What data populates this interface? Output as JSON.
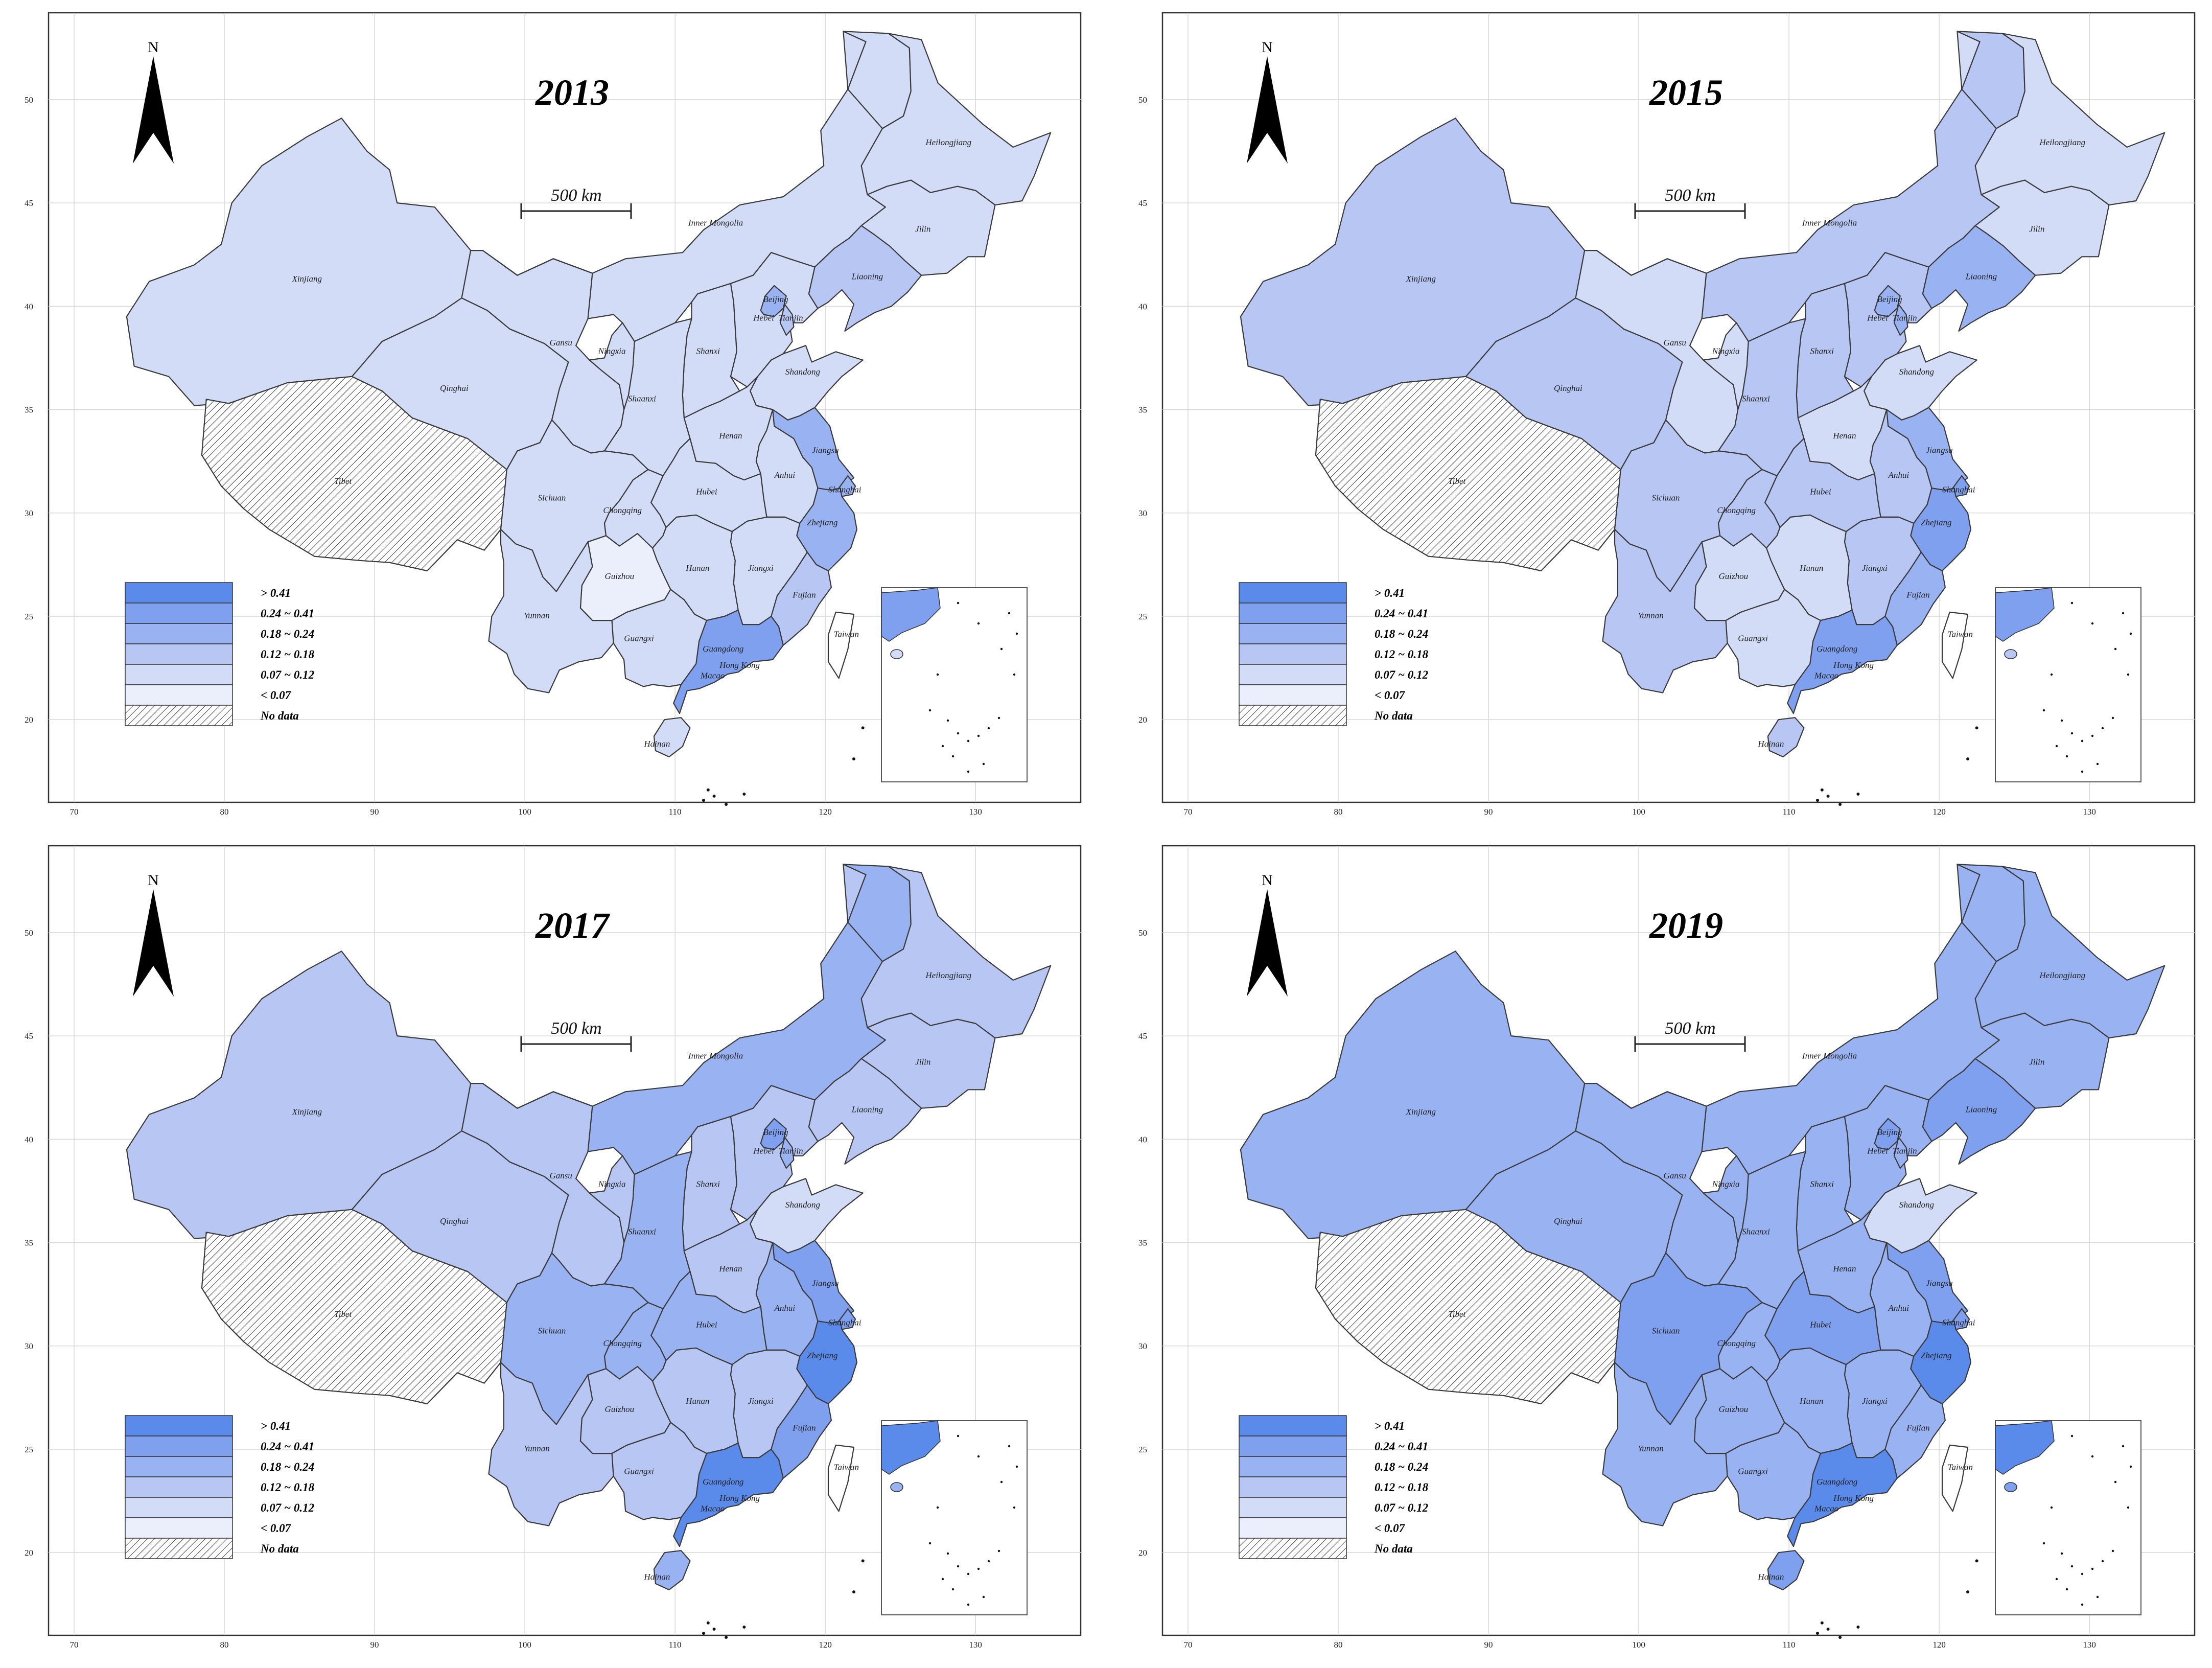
{
  "colors": {
    "class_gt_0_41": "#5b8bea",
    "class_0_24_0_41": "#7f9fef",
    "class_0_18_0_24": "#99b2f1",
    "class_0_12_0_18": "#b7c6f3",
    "class_0_07_0_12": "#d2dcf7",
    "class_lt_0_07": "#ebeffc",
    "no_data": "hatched",
    "grid": "#d8d8d8",
    "border": "#3a3a3a"
  },
  "axes": {
    "x_ticks": [
      "70",
      "80",
      "90",
      "100",
      "110",
      "120",
      "130"
    ],
    "y_ticks": [
      "20",
      "25",
      "30",
      "35",
      "40",
      "45",
      "50"
    ]
  },
  "north_arrow": {
    "label": "N",
    "icon": "north-arrow-icon"
  },
  "scale_bar": {
    "label": "500 km"
  },
  "legend": [
    {
      "key": "c5",
      "label": "> 0.41"
    },
    {
      "key": "c4",
      "label": "0.24 ~ 0.41"
    },
    {
      "key": "c3",
      "label": "0.18 ~ 0.24"
    },
    {
      "key": "c2",
      "label": "0.12 ~ 0.18"
    },
    {
      "key": "c1",
      "label": "0.07 ~ 0.12"
    },
    {
      "key": "c0",
      "label": "< 0.07"
    },
    {
      "key": "nd",
      "label": "No data"
    }
  ],
  "province_labels": {
    "Xinjiang": "Xinjiang",
    "Tibet": "Tibet",
    "Qinghai": "Qinghai",
    "Gansu": "Gansu",
    "InnerMongolia": "Inner Mongolia",
    "Heilongjiang": "Heilongjiang",
    "Jilin": "Jilin",
    "Liaoning": "Liaoning",
    "Beijing": "Beijing",
    "Tianjin": "Tianjin",
    "Hebei": "Hebei",
    "Shanxi": "Shanxi",
    "Shandong": "Shandong",
    "Ningxia": "Ningxia",
    "Shaanxi": "Shaanxi",
    "Henan": "Henan",
    "Jiangsu": "Jiangsu",
    "Anhui": "Anhui",
    "Shanghai": "Shanghai",
    "Hubei": "Hubei",
    "Sichuan": "Sichuan",
    "Chongqing": "Chongqing",
    "Zhejiang": "Zhejiang",
    "Hunan": "Hunan",
    "Jiangxi": "Jiangxi",
    "Guizhou": "Guizhou",
    "Fujian": "Fujian",
    "Yunnan": "Yunnan",
    "Guangxi": "Guangxi",
    "Guangdong": "Guangdong",
    "Taiwan": "Taiwan",
    "HongKong": "Hong Kong",
    "Macao": "Macao",
    "Hainan": "Hainan"
  },
  "panels": [
    {
      "year": "2013",
      "classes": {
        "Xinjiang": "c1",
        "Tibet": "nd",
        "Qinghai": "c1",
        "Gansu": "c1",
        "InnerMongolia": "c1",
        "Heilongjiang": "c1",
        "Jilin": "c1",
        "Liaoning": "c2",
        "Beijing": "c3",
        "Tianjin": "c2",
        "Hebei": "c1",
        "Shanxi": "c1",
        "Shandong": "c1",
        "Ningxia": "c1",
        "Shaanxi": "c1",
        "Henan": "c1",
        "Jiangsu": "c3",
        "Anhui": "c1",
        "Shanghai": "c3",
        "Hubei": "c1",
        "Sichuan": "c1",
        "Chongqing": "c1",
        "Zhejiang": "c3",
        "Hunan": "c1",
        "Jiangxi": "c1",
        "Guizhou": "c0",
        "Fujian": "c2",
        "Yunnan": "c1",
        "Guangxi": "c1",
        "Guangdong": "c4",
        "Hainan": "c1"
      }
    },
    {
      "year": "2015",
      "classes": {
        "Xinjiang": "c2",
        "Tibet": "nd",
        "Qinghai": "c2",
        "Gansu": "c1",
        "InnerMongolia": "c2",
        "Heilongjiang": "c1",
        "Jilin": "c1",
        "Liaoning": "c3",
        "Beijing": "c3",
        "Tianjin": "c3",
        "Hebei": "c2",
        "Shanxi": "c2",
        "Shandong": "c1",
        "Ningxia": "c1",
        "Shaanxi": "c2",
        "Henan": "c1",
        "Jiangsu": "c3",
        "Anhui": "c2",
        "Shanghai": "c4",
        "Hubei": "c2",
        "Sichuan": "c2",
        "Chongqing": "c2",
        "Zhejiang": "c4",
        "Hunan": "c1",
        "Jiangxi": "c2",
        "Guizhou": "c1",
        "Fujian": "c3",
        "Yunnan": "c2",
        "Guangxi": "c1",
        "Guangdong": "c4",
        "Hainan": "c2"
      }
    },
    {
      "year": "2017",
      "classes": {
        "Xinjiang": "c2",
        "Tibet": "nd",
        "Qinghai": "c2",
        "Gansu": "c2",
        "InnerMongolia": "c3",
        "Heilongjiang": "c2",
        "Jilin": "c2",
        "Liaoning": "c2",
        "Beijing": "c4",
        "Tianjin": "c3",
        "Hebei": "c2",
        "Shanxi": "c2",
        "Shandong": "c1",
        "Ningxia": "c2",
        "Shaanxi": "c3",
        "Henan": "c2",
        "Jiangsu": "c4",
        "Anhui": "c3",
        "Shanghai": "c4",
        "Hubei": "c3",
        "Sichuan": "c3",
        "Chongqing": "c3",
        "Zhejiang": "c5",
        "Hunan": "c2",
        "Jiangxi": "c2",
        "Guizhou": "c2",
        "Fujian": "c4",
        "Yunnan": "c2",
        "Guangxi": "c2",
        "Guangdong": "c5",
        "Hainan": "c3"
      }
    },
    {
      "year": "2019",
      "classes": {
        "Xinjiang": "c3",
        "Tibet": "nd",
        "Qinghai": "c3",
        "Gansu": "c3",
        "InnerMongolia": "c3",
        "Heilongjiang": "c3",
        "Jilin": "c3",
        "Liaoning": "c4",
        "Beijing": "c4",
        "Tianjin": "c3",
        "Hebei": "c3",
        "Shanxi": "c3",
        "Shandong": "c1",
        "Ningxia": "c3",
        "Shaanxi": "c3",
        "Henan": "c3",
        "Jiangsu": "c4",
        "Anhui": "c3",
        "Shanghai": "c4",
        "Hubei": "c4",
        "Sichuan": "c4",
        "Chongqing": "c3",
        "Zhejiang": "c5",
        "Hunan": "c3",
        "Jiangxi": "c3",
        "Guizhou": "c3",
        "Fujian": "c3",
        "Yunnan": "c3",
        "Guangxi": "c3",
        "Guangdong": "c5",
        "Hainan": "c4"
      }
    }
  ]
}
